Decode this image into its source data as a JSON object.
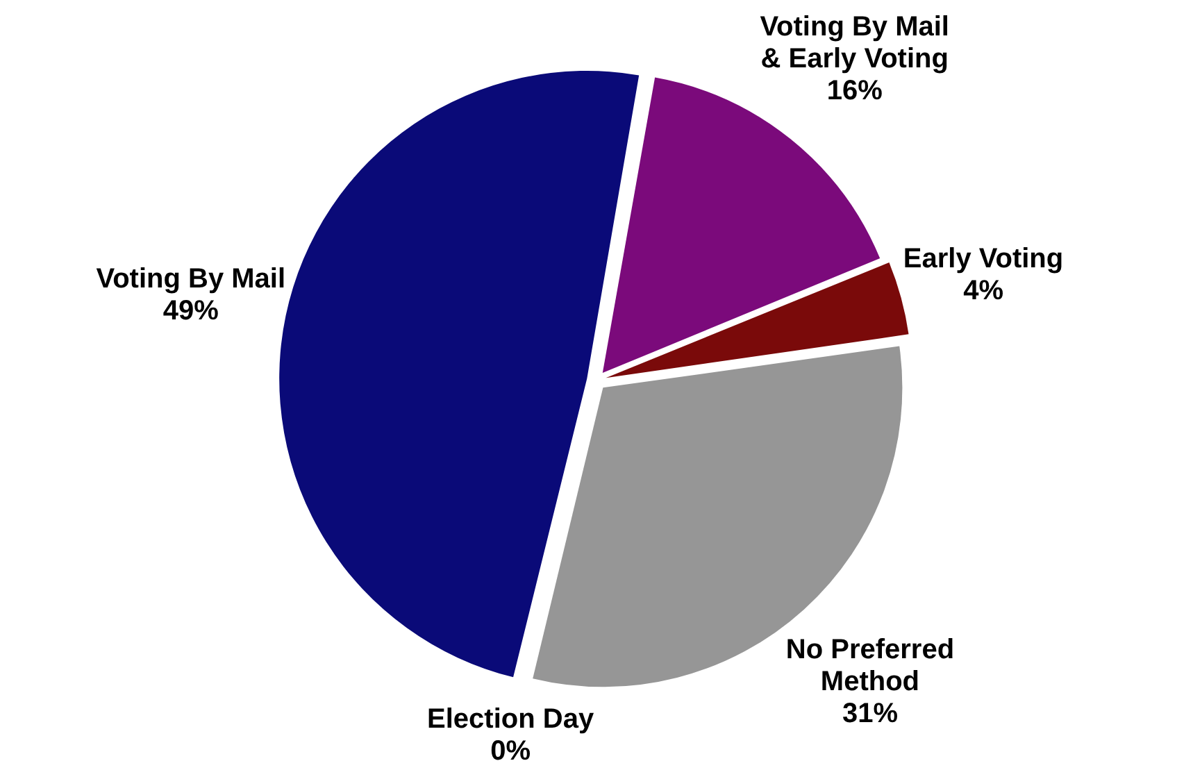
{
  "chart_data": {
    "type": "pie",
    "categories": [
      "Voting By Mail & Early Voting",
      "Early Voting",
      "No Preferred Method",
      "Election Day",
      "Voting By Mail"
    ],
    "values": [
      16,
      4,
      31,
      0,
      49
    ],
    "colors": [
      "#7b0a7b",
      "#7a0a0a",
      "#969696",
      "#808080",
      "#0a0a78"
    ],
    "value_labels": [
      "16%",
      "4%",
      "31%",
      "0%",
      "49%"
    ],
    "legend": false
  }
}
